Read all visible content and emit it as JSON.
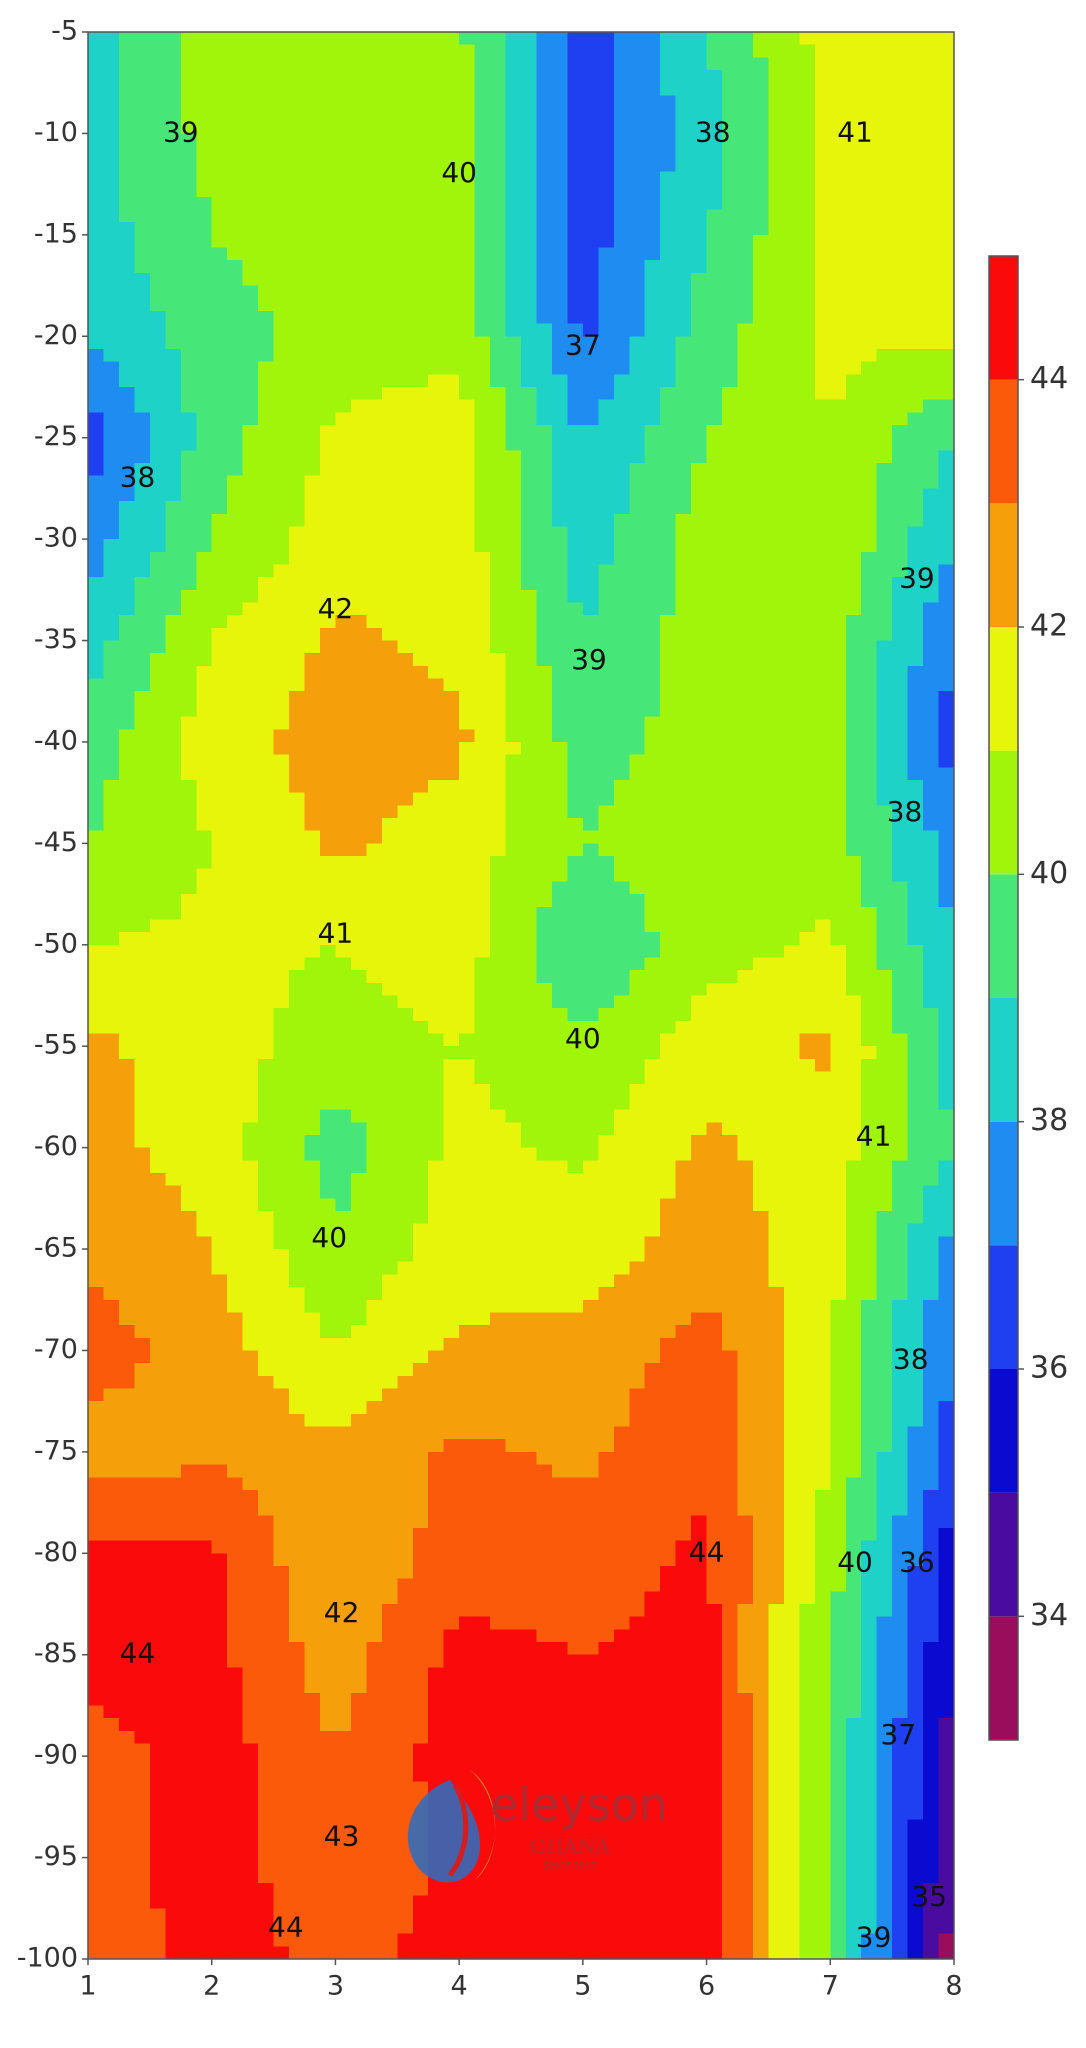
{
  "chart_data": {
    "type": "contour",
    "x": [
      1,
      2,
      3,
      4,
      5,
      6,
      7,
      8
    ],
    "y": [
      -5,
      -10,
      -15,
      -20,
      -25,
      -30,
      -35,
      -40,
      -45,
      -50,
      -55,
      -60,
      -65,
      -70,
      -75,
      -80,
      -85,
      -90,
      -95,
      -100
    ],
    "z": [
      [
        38.5,
        40.5,
        40.5,
        40.2,
        36.5,
        39,
        41.5,
        41.5
      ],
      [
        38.7,
        40.3,
        40.5,
        40.5,
        36.5,
        38.5,
        41.2,
        41.5
      ],
      [
        38.5,
        40,
        40.5,
        40.5,
        36.5,
        39,
        41.3,
        41.5
      ],
      [
        38,
        39.5,
        40.5,
        40.7,
        36.8,
        39.5,
        41.2,
        41.2
      ],
      [
        36.5,
        39.5,
        41.2,
        41.5,
        38,
        40,
        41,
        39
      ],
      [
        37.5,
        40,
        41.5,
        41.5,
        38.5,
        40.5,
        41,
        38
      ],
      [
        38.5,
        41,
        42.2,
        41.8,
        39,
        40.5,
        40.5,
        37
      ],
      [
        39.5,
        41.5,
        42.5,
        42.2,
        39.5,
        40.5,
        40.3,
        36.5
      ],
      [
        40,
        41,
        42.2,
        41.5,
        40,
        40.8,
        40.5,
        37.5
      ],
      [
        41,
        41.2,
        41,
        41.5,
        39,
        40.6,
        41.2,
        38
      ],
      [
        42.2,
        41.5,
        40.5,
        41,
        40.2,
        41.5,
        42.2,
        38.5
      ],
      [
        42.3,
        41.6,
        39.5,
        41.3,
        40.8,
        42.2,
        41.5,
        39
      ],
      [
        42.8,
        42,
        40.2,
        41.5,
        41.5,
        42.5,
        41.5,
        37.5
      ],
      [
        43.5,
        42.5,
        41,
        42.2,
        42.3,
        43.5,
        41,
        37
      ],
      [
        42.5,
        42.8,
        42.2,
        43.2,
        42.8,
        43.8,
        41,
        36.5
      ],
      [
        44.2,
        44.2,
        42,
        43.5,
        43.5,
        44.2,
        40.5,
        35.5
      ],
      [
        44.5,
        44.3,
        42.5,
        44.3,
        44,
        44.3,
        40,
        35
      ],
      [
        43.5,
        44.5,
        43,
        44.5,
        44,
        44.5,
        40,
        34.5
      ],
      [
        43.5,
        44.5,
        43.3,
        44.2,
        44.5,
        44.5,
        40,
        34
      ],
      [
        43.5,
        44.3,
        43.8,
        44.3,
        44.5,
        44.5,
        40,
        33.5
      ]
    ],
    "xlim": [
      1,
      8
    ],
    "ylim": [
      -100,
      -5
    ],
    "xticks": [
      1,
      2,
      3,
      4,
      5,
      6,
      7,
      8
    ],
    "yticks": [
      -5,
      -10,
      -15,
      -20,
      -25,
      -30,
      -35,
      -40,
      -45,
      -50,
      -55,
      -60,
      -65,
      -70,
      -75,
      -80,
      -85,
      -90,
      -95,
      -100
    ],
    "levels": [
      33,
      34,
      35,
      36,
      37,
      38,
      39,
      40,
      41,
      42,
      43,
      44,
      45
    ],
    "colors": [
      "#9a0c5c",
      "#4a0ca0",
      "#0a0ad0",
      "#1e40f0",
      "#1e8cf0",
      "#1ed2c8",
      "#46e678",
      "#a0f50a",
      "#e6f50a",
      "#f5a00a",
      "#fa5a0a",
      "#fa0a0a"
    ],
    "colorbar_ticks": [
      34,
      36,
      38,
      40,
      42,
      44
    ],
    "contour_labels": [
      {
        "text": "39",
        "x": 1.75,
        "y": -10
      },
      {
        "text": "40",
        "x": 4,
        "y": -12
      },
      {
        "text": "38",
        "x": 6.05,
        "y": -10
      },
      {
        "text": "41",
        "x": 7.2,
        "y": -10
      },
      {
        "text": "37",
        "x": 5,
        "y": -20.5
      },
      {
        "text": "38",
        "x": 1.4,
        "y": -27
      },
      {
        "text": "42",
        "x": 3,
        "y": -33.5
      },
      {
        "text": "39",
        "x": 5.05,
        "y": -36
      },
      {
        "text": "39",
        "x": 7.7,
        "y": -32
      },
      {
        "text": "38",
        "x": 7.6,
        "y": -43.5
      },
      {
        "text": "41",
        "x": 3,
        "y": -49.5
      },
      {
        "text": "40",
        "x": 5,
        "y": -54.7
      },
      {
        "text": "41",
        "x": 7.35,
        "y": -59.5
      },
      {
        "text": "40",
        "x": 2.95,
        "y": -64.5
      },
      {
        "text": "38",
        "x": 7.65,
        "y": -70.5
      },
      {
        "text": "44",
        "x": 6,
        "y": -80
      },
      {
        "text": "42",
        "x": 3.05,
        "y": -83
      },
      {
        "text": "40",
        "x": 7.2,
        "y": -80.5
      },
      {
        "text": "36",
        "x": 7.7,
        "y": -80.5
      },
      {
        "text": "44",
        "x": 1.4,
        "y": -85
      },
      {
        "text": "37",
        "x": 7.55,
        "y": -89
      },
      {
        "text": "43",
        "x": 3.05,
        "y": -94
      },
      {
        "text": "35",
        "x": 7.8,
        "y": -97
      },
      {
        "text": "39",
        "x": 7.35,
        "y": -99
      },
      {
        "text": "44",
        "x": 2.6,
        "y": -98.5
      }
    ],
    "watermark": {
      "name": "eleyson",
      "sub": "GHANA",
      "since": "SINCE 2017"
    }
  }
}
